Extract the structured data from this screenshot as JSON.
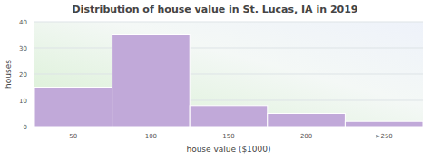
{
  "chart_data": {
    "type": "bar",
    "title": "Distribution of house value in St. Lucas, IA in 2019",
    "x_label": "house value ($1000)",
    "y_label": "houses",
    "categories": [
      "50",
      "100",
      "150",
      "200",
      ">250"
    ],
    "values": [
      15,
      35,
      8,
      5,
      2
    ],
    "color": "#c1a9d9",
    "ylim": [
      0,
      40
    ],
    "yticks": [
      0,
      10,
      20,
      30,
      40
    ],
    "grid": true
  }
}
